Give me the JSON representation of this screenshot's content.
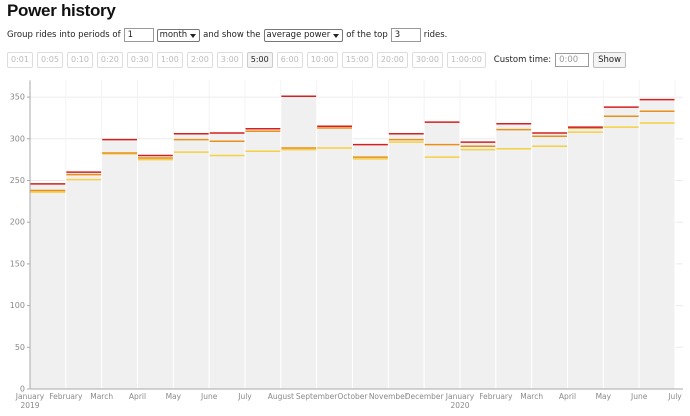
{
  "header": {
    "title": "Power history"
  },
  "controls": {
    "group_prefix": "Group rides into periods of",
    "period_count": "1",
    "period_unit": "month",
    "show_prefix": "and show the",
    "metric": "average power",
    "top_prefix": "of the top",
    "top_count": "3",
    "suffix": "rides.",
    "durations": [
      {
        "label": "0:01"
      },
      {
        "label": "0:05"
      },
      {
        "label": "0:10"
      },
      {
        "label": "0:20"
      },
      {
        "label": "0:30"
      },
      {
        "label": "1:00"
      },
      {
        "label": "2:00"
      },
      {
        "label": "3:00"
      },
      {
        "label": "5:00",
        "selected": true
      },
      {
        "label": "6:00"
      },
      {
        "label": "10:00"
      },
      {
        "label": "15:00"
      },
      {
        "label": "20:00"
      },
      {
        "label": "30:00"
      },
      {
        "label": "1:00:00"
      }
    ],
    "custom_time_label": "Custom time:",
    "custom_time": "0:00",
    "show_button": "Show"
  },
  "chart_data": {
    "type": "step_bar",
    "categories": [
      "January\n2019",
      "February",
      "March",
      "April",
      "May",
      "June",
      "July",
      "August",
      "September",
      "October",
      "November",
      "December",
      "January\n2020",
      "February",
      "March",
      "April",
      "May",
      "June",
      "July"
    ],
    "series": [
      {
        "color": "#d42020",
        "values": [
          246,
          260,
          299,
          280,
          306,
          307,
          312,
          351,
          315,
          293,
          306,
          320,
          296,
          318,
          307,
          314,
          338,
          347,
          null
        ]
      },
      {
        "color": "#e8901a",
        "values": [
          238,
          257,
          283,
          277,
          299,
          297,
          309,
          289,
          313,
          278,
          299,
          293,
          291,
          311,
          303,
          313,
          327,
          333,
          null
        ]
      },
      {
        "color": "#f5d040",
        "values": [
          236,
          251,
          282,
          275,
          284,
          280,
          285,
          287,
          289,
          276,
          296,
          278,
          287,
          288,
          291,
          308,
          314,
          319,
          null
        ]
      }
    ],
    "bar_fill": "#f0f0f0",
    "ylim": [
      0,
      370
    ],
    "yticks": [
      0,
      50,
      100,
      150,
      200,
      250,
      300,
      350
    ],
    "grid": true
  }
}
